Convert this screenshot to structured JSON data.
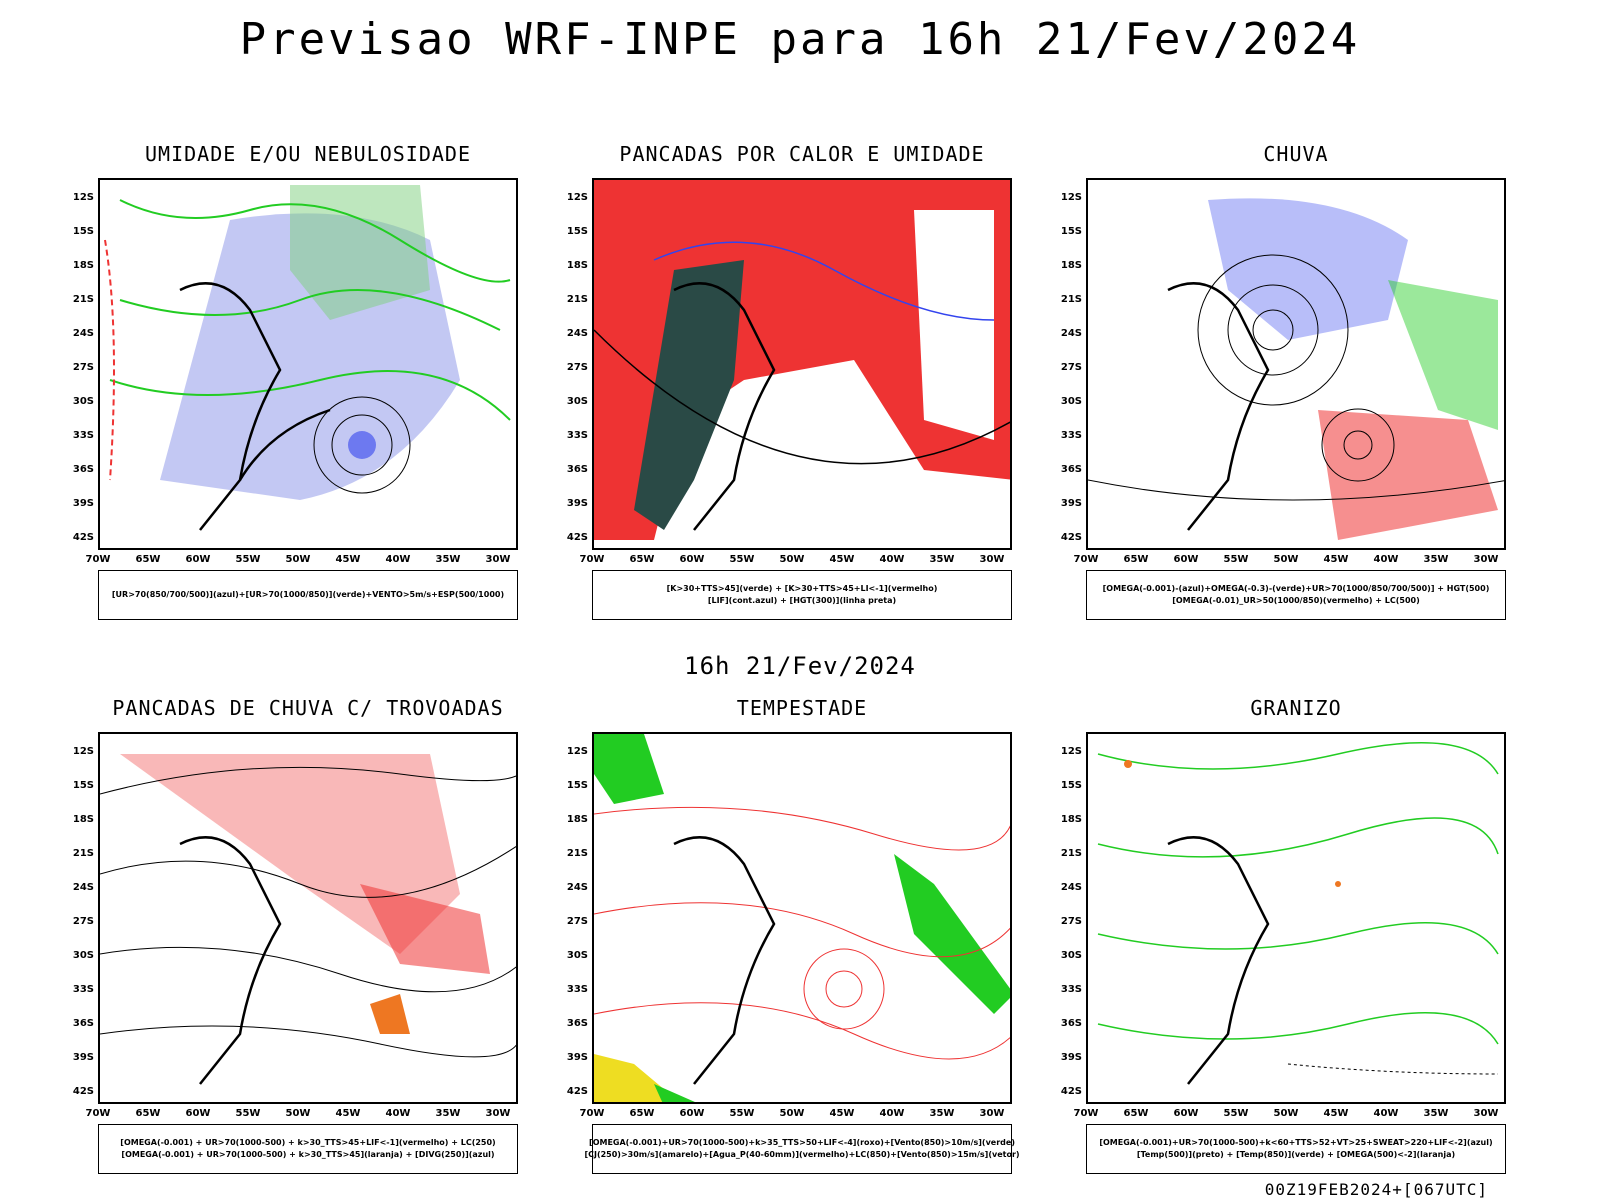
{
  "header": {
    "title": "Previsao WRF-INPE  para 16h 21/Fev/2024"
  },
  "middle_title": "16h 21/Fev/2024",
  "footer": {
    "run_stamp": "00Z19FEB2024+[067UTC]"
  },
  "axes": {
    "lat_labels": [
      "12S",
      "15S",
      "18S",
      "21S",
      "24S",
      "27S",
      "30S",
      "33S",
      "36S",
      "39S",
      "42S"
    ],
    "lon_labels": [
      "70W",
      "65W",
      "60W",
      "55W",
      "50W",
      "45W",
      "40W",
      "35W",
      "30W"
    ]
  },
  "colors": {
    "blue": "#3344ee",
    "green": "#22cc22",
    "red": "#ee3333",
    "shade_blue": "#aab0ee",
    "dark_teal": "#2a4a46",
    "orange": "#ee7722",
    "yellow": "#eedd22",
    "black": "#000000"
  },
  "panels": [
    {
      "title": "UMIDADE E/OU NEBULOSIDADE",
      "legend": [
        "[UR>70(850/700/500)](azul)+[UR>70(1000/850)](verde)+VENTO>5m/s+ESP(500/1000)"
      ]
    },
    {
      "title": "PANCADAS POR CALOR E UMIDADE",
      "legend": [
        "[K>30+TTS>45](verde) + [K>30+TTS>45+LI<-1](vermelho)",
        "[LIF](cont.azul) + [HGT(300)](linha preta)"
      ]
    },
    {
      "title": "CHUVA",
      "legend": [
        "[OMEGA(-0.001)-(azul)+OMEGA(-0.3)-(verde)+UR>70(1000/850/700/500)] + HGT(500)",
        "[OMEGA(-0.01)_UR>50(1000/850)(vermelho) + LC(500)"
      ]
    },
    {
      "title": "PANCADAS DE CHUVA C/ TROVOADAS",
      "legend": [
        "[OMEGA(-0.001) + UR>70(1000-500) + k>30_TTS>45+LIF<-1](vermelho) + LC(250)",
        "[OMEGA(-0.001) + UR>70(1000-500) + k>30_TTS>45](laranja) + [DIVG(250)](azul)"
      ]
    },
    {
      "title": "TEMPESTADE",
      "legend": [
        "[OMEGA(-0.001)+UR>70(1000-500)+k>35_TTS>50+LIF<-4](roxo)+[Vento(850)>10m/s](verde)",
        "[CJ(250)>30m/s](amarelo)+[Agua_P(40-60mm)](vermelho)+LC(850)+[Vento(850)>15m/s](vetor)"
      ]
    },
    {
      "title": "GRANIZO",
      "legend": [
        "[OMEGA(-0.001)+UR>70(1000-500)+k<60+TTS>52+VT>25+SWEAT>220+LIF<-2](azul)",
        "[Temp(500)](preto) + [Temp(850)](verde) + [OMEGA(500)<-2](laranja)"
      ]
    }
  ]
}
